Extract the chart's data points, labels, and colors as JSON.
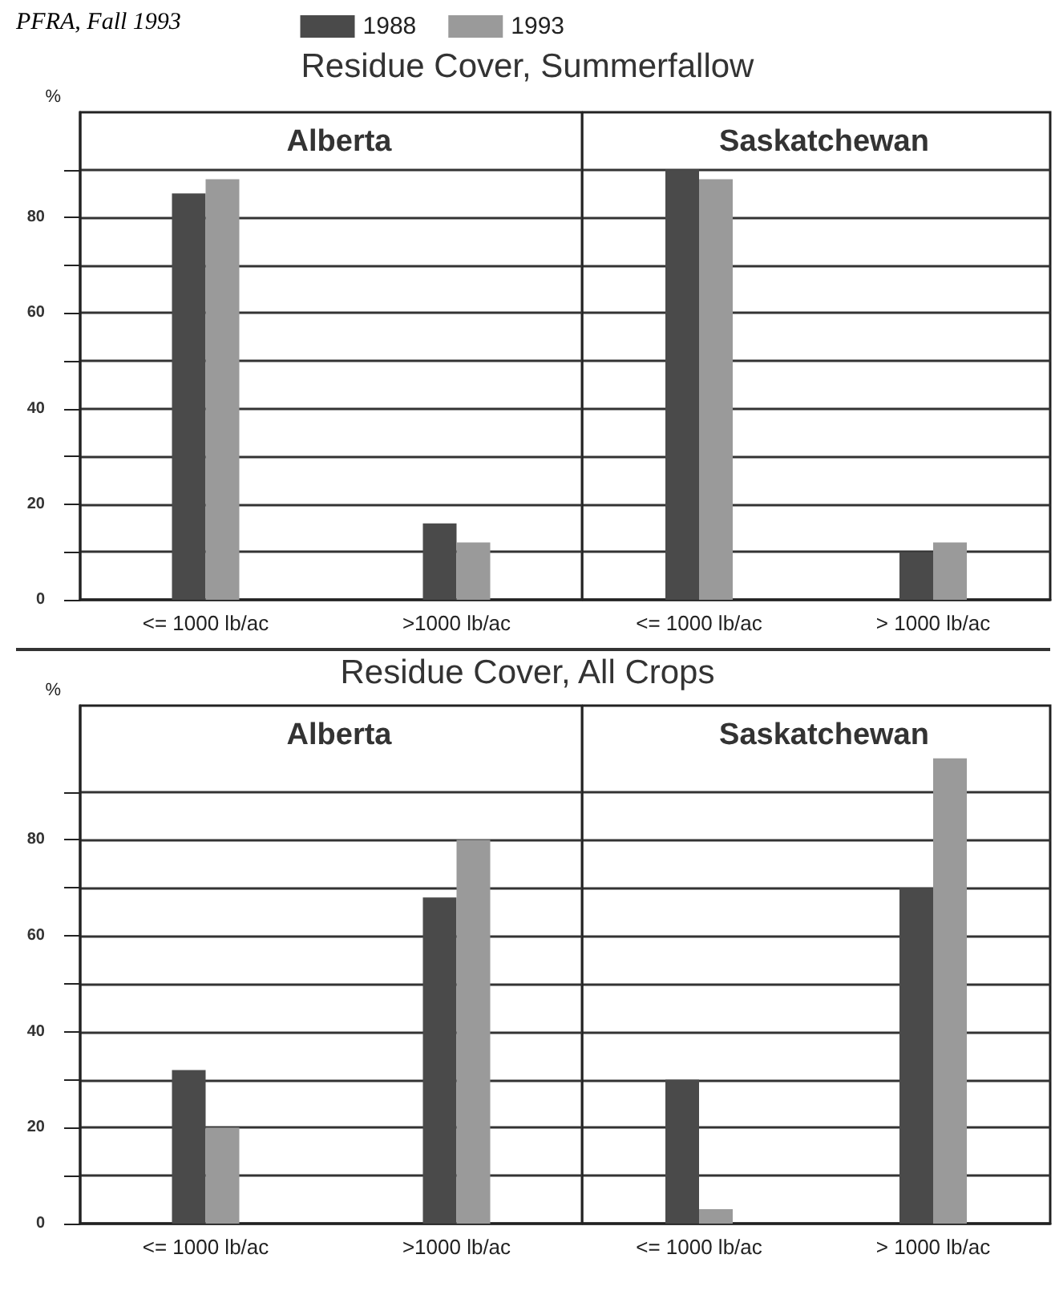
{
  "chart_data": [
    {
      "type": "bar",
      "title": "Alberta",
      "ylabel": "%",
      "annotations": [
        "PFRA, Fall 1993",
        "Residue Cover, Summerfallow"
      ],
      "categories": [
        "<= 1000 lb/ac",
        ">1000 lb/ac"
      ],
      "series": [
        {
          "name": "1988",
          "color": "#4a4a4a",
          "values": [
            85,
            16
          ]
        },
        {
          "name": "1993",
          "color": "#9a9a9a",
          "values": [
            88,
            12
          ]
        }
      ],
      "ylim": [
        0,
        102
      ],
      "yticks": [
        0,
        {
          "value": 10,
          "label": null
        },
        20,
        {
          "value": 30,
          "label": null
        },
        40,
        {
          "value": 50,
          "label": null
        },
        60,
        {
          "value": 70,
          "label": null
        },
        80,
        {
          "value": 90,
          "label": null
        }
      ],
      "grid": "y",
      "legend": "top right"
    },
    {
      "type": "bar",
      "title": "Saskatchewan",
      "categories": [
        "<= 1000 lb/ac",
        "> 1000 lb/ac"
      ],
      "series": [
        {
          "color": "#4a4a4a",
          "values": [
            90,
            10
          ]
        },
        {
          "color": "#9a9a9a",
          "values": [
            88,
            12
          ]
        }
      ],
      "ylim": [
        0,
        102
      ],
      "yticks": [
        0,
        {
          "value": 10,
          "label": null
        },
        20,
        {
          "value": 30,
          "label": null
        },
        40,
        {
          "value": 50,
          "label": null
        },
        60,
        {
          "value": 70,
          "label": null
        },
        80,
        {
          "value": 90,
          "label": null
        }
      ],
      "grid": "y",
      "tick_labels": "x"
    },
    {
      "type": "bar",
      "title": "Alberta",
      "ylabel": "%",
      "annotations": [
        "Residue Cover, All Crops"
      ],
      "categories": [
        "<= 1000 lb/ac",
        ">1000 lb/ac"
      ],
      "series": [
        {
          "color": "#4a4a4a",
          "values": [
            32,
            68
          ]
        },
        {
          "color": "#9a9a9a",
          "values": [
            20,
            80
          ]
        }
      ],
      "ylim": [
        0,
        108
      ],
      "yticks": [
        0,
        {
          "value": 10,
          "label": null
        },
        20,
        {
          "value": 30,
          "label": null
        },
        40,
        {
          "value": 50,
          "label": null
        },
        60,
        {
          "value": 70,
          "label": null
        },
        80,
        {
          "value": 90,
          "label": null
        }
      ],
      "grid": "y"
    },
    {
      "type": "bar",
      "title": "Saskatchewan",
      "categories": [
        "<= 1000 lb/ac",
        "> 1000 lb/ac"
      ],
      "series": [
        {
          "color": "#4a4a4a",
          "values": [
            30,
            70
          ]
        },
        {
          "color": "#9a9a9a",
          "values": [
            3,
            97
          ]
        }
      ],
      "ylim": [
        0,
        108
      ],
      "yticks": [
        0,
        {
          "value": 10,
          "label": null
        },
        20,
        {
          "value": 30,
          "label": null
        },
        40,
        {
          "value": 50,
          "label": null
        },
        60,
        {
          "value": 70,
          "label": null
        },
        80,
        {
          "value": 90,
          "label": null
        }
      ],
      "grid": "y",
      "tick_labels": "x"
    }
  ]
}
